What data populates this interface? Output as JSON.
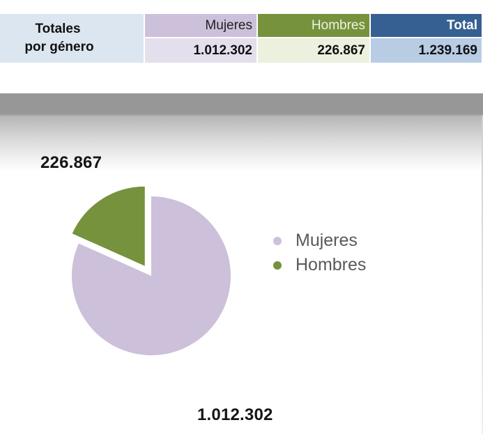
{
  "summary": {
    "row_label_line1": "Totales",
    "row_label_line2": "por género",
    "headers": {
      "mujeres": "Mujeres",
      "hombres": "Hombres",
      "total": "Total"
    },
    "values": {
      "mujeres": "1.012.302",
      "hombres": "226.867",
      "total": "1.239.169"
    }
  },
  "colors": {
    "mujeres": "#ccc0da",
    "mujeres_light": "#e4dfec",
    "hombres": "#76923c",
    "hombres_light": "#ebf1de",
    "total": "#366092",
    "total_light": "#b8cce4",
    "label_bg": "#dce6f1"
  },
  "chart": {
    "label_hombres": "226.867",
    "label_mujeres": "1.012.302",
    "legend": [
      {
        "label": "Mujeres",
        "color": "#ccc0da"
      },
      {
        "label": "Hombres",
        "color": "#76923c"
      }
    ]
  },
  "chart_data": {
    "type": "pie",
    "title": "",
    "categories": [
      "Mujeres",
      "Hombres"
    ],
    "values": [
      1012302,
      226867
    ],
    "colors": [
      "#ccc0da",
      "#76923c"
    ],
    "data_labels": [
      "1.012.302",
      "226.867"
    ],
    "exploded": [
      "Hombres"
    ],
    "legend_position": "right",
    "total": 1239169
  }
}
